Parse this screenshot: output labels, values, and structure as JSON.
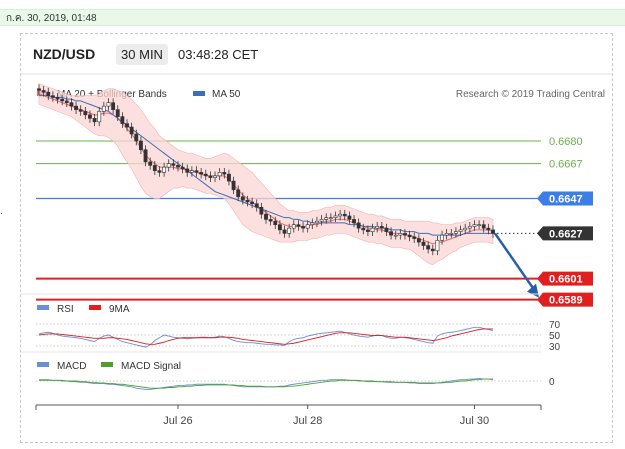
{
  "header": {
    "date_text": "ก.ค. 30, 2019, 01:48",
    "symbol": "NZD/USD",
    "timeframe": "30 MIN",
    "time": "03:48:28 CET"
  },
  "legend": {
    "ma_bb": "MA 20 + Bollinger Bands",
    "ma50": "MA 50",
    "credit": "Research © 2019 Trading Central",
    "rsi": "RSI",
    "rsi_ma": "9MA",
    "macd": "MACD",
    "macd_signal": "MACD Signal"
  },
  "colors": {
    "candle": "#333333",
    "ma20": "#e86a6a",
    "bollinger_fill": "#fbd5d5",
    "ma50": "#3d6fb6",
    "resistance": "#6ab04c",
    "pivot": "#3c7de6",
    "support": "#e02020",
    "current": "#333333",
    "arrow": "#2a5fa8",
    "rsi_line": "#6a8fd6",
    "rsi_ma": "#e02020",
    "macd_line": "#6a8fd6",
    "macd_signal": "#4fa02a"
  },
  "chart_data": {
    "type": "candlestick",
    "title": "NZD/USD 30 MIN",
    "ylim": [
      0.6575,
      0.6715
    ],
    "x_ticks": [
      "Jul 26",
      "Jul 28",
      "Jul 30"
    ],
    "levels": [
      {
        "value": 0.668,
        "label": "0.6680",
        "kind": "resistance"
      },
      {
        "value": 0.6667,
        "label": "0.6667",
        "kind": "resistance"
      },
      {
        "value": 0.6647,
        "label": "0.6647",
        "kind": "pivot"
      },
      {
        "value": 0.6627,
        "label": "0.6627",
        "kind": "current"
      },
      {
        "value": 0.6601,
        "label": "0.6601",
        "kind": "support"
      },
      {
        "value": 0.6589,
        "label": "0.6589",
        "kind": "support"
      }
    ],
    "price_closes": [
      0.6709,
      0.6708,
      0.6706,
      0.6705,
      0.6704,
      0.6703,
      0.6702,
      0.67,
      0.6698,
      0.6697,
      0.6695,
      0.6693,
      0.6691,
      0.6697,
      0.67,
      0.6702,
      0.6698,
      0.6694,
      0.669,
      0.6688,
      0.6684,
      0.668,
      0.6675,
      0.6668,
      0.6666,
      0.6663,
      0.6662,
      0.6665,
      0.6667,
      0.6666,
      0.6665,
      0.6664,
      0.6662,
      0.6663,
      0.6662,
      0.6661,
      0.666,
      0.6659,
      0.666,
      0.6662,
      0.6661,
      0.6657,
      0.6652,
      0.6648,
      0.6646,
      0.6645,
      0.6644,
      0.6642,
      0.6638,
      0.6635,
      0.6634,
      0.6632,
      0.6629,
      0.6627,
      0.663,
      0.6632,
      0.6631,
      0.663,
      0.6632,
      0.6633,
      0.6634,
      0.6635,
      0.6636,
      0.6636,
      0.6637,
      0.6638,
      0.6637,
      0.6635,
      0.6633,
      0.663,
      0.6629,
      0.6628,
      0.663,
      0.6631,
      0.663,
      0.6628,
      0.6626,
      0.6626,
      0.6627,
      0.6626,
      0.6625,
      0.6624,
      0.6622,
      0.662,
      0.6618,
      0.6617,
      0.6623,
      0.6626,
      0.6627,
      0.6627,
      0.6628,
      0.6629,
      0.663,
      0.6631,
      0.6632,
      0.6632,
      0.663,
      0.6629,
      0.6627
    ],
    "ma20_values": [
      0.6707,
      0.6706,
      0.6705,
      0.6704,
      0.6703,
      0.6702,
      0.6701,
      0.67,
      0.6699,
      0.6698,
      0.6697,
      0.6696,
      0.6695,
      0.6695,
      0.6696,
      0.6696,
      0.6695,
      0.6693,
      0.669,
      0.6687,
      0.6684,
      0.668,
      0.6676,
      0.6672,
      0.6669,
      0.6667,
      0.6665,
      0.6665,
      0.6665,
      0.6665,
      0.6664,
      0.6664,
      0.6663,
      0.6663,
      0.6662,
      0.6661,
      0.666,
      0.666,
      0.666,
      0.666,
      0.666,
      0.6658,
      0.6655,
      0.6652,
      0.6649,
      0.6647,
      0.6645,
      0.6643,
      0.6641,
      0.6639,
      0.6637,
      0.6635,
      0.6633,
      0.6632,
      0.6631,
      0.6631,
      0.6631,
      0.6631,
      0.6631,
      0.6632,
      0.6632,
      0.6633,
      0.6634,
      0.6634,
      0.6635,
      0.6635,
      0.6635,
      0.6634,
      0.6633,
      0.6632,
      0.6631,
      0.663,
      0.663,
      0.6629,
      0.6629,
      0.6628,
      0.6627,
      0.6627,
      0.6627,
      0.6626,
      0.6626,
      0.6625,
      0.6624,
      0.6623,
      0.6622,
      0.6621,
      0.6622,
      0.6622,
      0.6623,
      0.6624,
      0.6625,
      0.6626,
      0.6627,
      0.6628,
      0.6629,
      0.6629,
      0.6629,
      0.6629,
      0.6628
    ],
    "ma50_values": [
      0.6706,
      0.6706,
      0.6706,
      0.6705,
      0.6705,
      0.6705,
      0.6704,
      0.6704,
      0.6703,
      0.6703,
      0.6702,
      0.6701,
      0.67,
      0.6699,
      0.6698,
      0.6697,
      0.6695,
      0.6693,
      0.6691,
      0.6689,
      0.6687,
      0.6685,
      0.6683,
      0.6681,
      0.6679,
      0.6677,
      0.6675,
      0.6673,
      0.6671,
      0.6669,
      0.6667,
      0.6665,
      0.6663,
      0.6661,
      0.6659,
      0.6657,
      0.6655,
      0.6653,
      0.6651,
      0.665,
      0.6649,
      0.6648,
      0.6647,
      0.6646,
      0.6645,
      0.6644,
      0.6643,
      0.6642,
      0.6641,
      0.664,
      0.6639,
      0.6638,
      0.6637,
      0.6636,
      0.6636,
      0.6635,
      0.6635,
      0.6634,
      0.6634,
      0.6633,
      0.6633,
      0.6633,
      0.6633,
      0.6633,
      0.6633,
      0.6633,
      0.6633,
      0.6632,
      0.6632,
      0.6632,
      0.6631,
      0.6631,
      0.6631,
      0.663,
      0.663,
      0.663,
      0.6629,
      0.6629,
      0.6629,
      0.6628,
      0.6628,
      0.6628,
      0.6627,
      0.6627,
      0.6627,
      0.6626,
      0.6626,
      0.6626,
      0.6626,
      0.6626,
      0.6626,
      0.6626,
      0.6627,
      0.6627,
      0.6627,
      0.6627,
      0.6627,
      0.6627,
      0.6627
    ],
    "bb_width": [
      0.0006,
      0.0006,
      0.0006,
      0.0006,
      0.0006,
      0.0006,
      0.0006,
      0.0006,
      0.0007,
      0.0008,
      0.0009,
      0.001,
      0.0011,
      0.0012,
      0.0013,
      0.0014,
      0.0015,
      0.0016,
      0.0018,
      0.0019,
      0.002,
      0.0021,
      0.0022,
      0.0022,
      0.0021,
      0.002,
      0.0018,
      0.0016,
      0.0014,
      0.0012,
      0.0011,
      0.001,
      0.001,
      0.001,
      0.001,
      0.001,
      0.001,
      0.001,
      0.0011,
      0.0012,
      0.0013,
      0.0014,
      0.0015,
      0.0016,
      0.0017,
      0.0017,
      0.0017,
      0.0016,
      0.0015,
      0.0014,
      0.0013,
      0.0012,
      0.0011,
      0.001,
      0.0009,
      0.0009,
      0.0008,
      0.0008,
      0.0008,
      0.0008,
      0.0008,
      0.0008,
      0.0008,
      0.0008,
      0.0008,
      0.0008,
      0.0008,
      0.0008,
      0.0008,
      0.0008,
      0.0008,
      0.0008,
      0.0008,
      0.0008,
      0.0008,
      0.0008,
      0.0008,
      0.0008,
      0.0008,
      0.0008,
      0.0008,
      0.0009,
      0.001,
      0.0011,
      0.0012,
      0.0012,
      0.0011,
      0.001,
      0.0009,
      0.0008,
      0.0008,
      0.0007,
      0.0007,
      0.0007,
      0.0007,
      0.0007,
      0.0007,
      0.0007,
      0.0007
    ],
    "projection": {
      "from": 0.6627,
      "to": 0.6589
    },
    "rsi": {
      "levels": [
        70,
        50,
        30
      ],
      "values": [
        52,
        54,
        55,
        53,
        50,
        48,
        47,
        46,
        45,
        44,
        42,
        40,
        38,
        44,
        48,
        50,
        46,
        42,
        38,
        36,
        34,
        32,
        30,
        28,
        32,
        40,
        45,
        50,
        48,
        46,
        45,
        44,
        43,
        44,
        45,
        46,
        46,
        45,
        46,
        48,
        47,
        44,
        40,
        38,
        37,
        36,
        36,
        35,
        34,
        33,
        33,
        32,
        32,
        31,
        38,
        42,
        44,
        45,
        48,
        50,
        52,
        53,
        54,
        55,
        56,
        57,
        55,
        52,
        50,
        48,
        47,
        46,
        48,
        50,
        49,
        46,
        44,
        44,
        46,
        45,
        44,
        42,
        40,
        38,
        36,
        35,
        48,
        52,
        54,
        55,
        56,
        58,
        60,
        62,
        64,
        64,
        62,
        60,
        58
      ],
      "ma9_values": [
        50,
        51,
        52,
        52,
        52,
        51,
        50,
        49,
        48,
        47,
        46,
        45,
        44,
        44,
        44,
        45,
        45,
        44,
        43,
        42,
        40,
        38,
        36,
        34,
        33,
        33,
        35,
        37,
        40,
        42,
        44,
        45,
        45,
        45,
        45,
        45,
        45,
        45,
        45,
        46,
        46,
        46,
        45,
        44,
        42,
        41,
        40,
        39,
        38,
        37,
        36,
        35,
        34,
        33,
        34,
        35,
        37,
        39,
        41,
        43,
        45,
        47,
        49,
        51,
        53,
        54,
        54,
        54,
        53,
        52,
        51,
        50,
        49,
        49,
        49,
        48,
        47,
        46,
        46,
        46,
        45,
        44,
        43,
        42,
        41,
        40,
        41,
        43,
        45,
        48,
        50,
        52,
        54,
        56,
        58,
        60,
        61,
        61,
        61
      ]
    },
    "macd": {
      "levels": [
        0
      ],
      "macd_values": [
        0.0002,
        0.0002,
        0.0002,
        0.0001,
        0.0001,
        0.0,
        0.0,
        -0.0001,
        -0.0001,
        -0.0002,
        -0.0002,
        -0.0003,
        -0.0004,
        -0.0004,
        -0.0004,
        -0.0005,
        -0.0005,
        -0.0006,
        -0.0007,
        -0.0008,
        -0.0009,
        -0.0011,
        -0.0012,
        -0.0013,
        -0.0013,
        -0.0012,
        -0.0011,
        -0.001,
        -0.0009,
        -0.0008,
        -0.0007,
        -0.0007,
        -0.0006,
        -0.0006,
        -0.0005,
        -0.0005,
        -0.0005,
        -0.0005,
        -0.0005,
        -0.0005,
        -0.0005,
        -0.0006,
        -0.0007,
        -0.0008,
        -0.0009,
        -0.0009,
        -0.0009,
        -0.0009,
        -0.0009,
        -0.0009,
        -0.0009,
        -0.0009,
        -0.0008,
        -0.0008,
        -0.0006,
        -0.0005,
        -0.0004,
        -0.0003,
        -0.0002,
        -0.0001,
        0.0,
        0.0001,
        0.0001,
        0.0002,
        0.0002,
        0.0002,
        0.0002,
        0.0001,
        0.0001,
        0.0,
        0.0,
        -0.0001,
        -0.0001,
        -0.0001,
        -0.0001,
        -0.0002,
        -0.0002,
        -0.0002,
        -0.0002,
        -0.0002,
        -0.0003,
        -0.0003,
        -0.0004,
        -0.0004,
        -0.0004,
        -0.0004,
        -0.0003,
        -0.0002,
        -0.0001,
        0.0,
        0.0001,
        0.0002,
        0.0002,
        0.0003,
        0.0003,
        0.0004,
        0.0003,
        0.0003,
        0.0002
      ],
      "signal_values": [
        0.0001,
        0.0001,
        0.0001,
        0.0001,
        0.0001,
        0.0001,
        0.0,
        0.0,
        0.0,
        -0.0001,
        -0.0001,
        -0.0002,
        -0.0002,
        -0.0003,
        -0.0003,
        -0.0004,
        -0.0004,
        -0.0005,
        -0.0005,
        -0.0006,
        -0.0007,
        -0.0008,
        -0.0009,
        -0.001,
        -0.0011,
        -0.0011,
        -0.0011,
        -0.0011,
        -0.001,
        -0.001,
        -0.0009,
        -0.0009,
        -0.0008,
        -0.0008,
        -0.0007,
        -0.0007,
        -0.0006,
        -0.0006,
        -0.0006,
        -0.0006,
        -0.0006,
        -0.0006,
        -0.0006,
        -0.0007,
        -0.0007,
        -0.0008,
        -0.0008,
        -0.0008,
        -0.0008,
        -0.0009,
        -0.0009,
        -0.0009,
        -0.0009,
        -0.0009,
        -0.0008,
        -0.0008,
        -0.0007,
        -0.0006,
        -0.0005,
        -0.0004,
        -0.0003,
        -0.0002,
        -0.0001,
        0.0,
        0.0,
        0.0001,
        0.0001,
        0.0001,
        0.0001,
        0.0001,
        0.0,
        0.0,
        0.0,
        -0.0001,
        -0.0001,
        -0.0001,
        -0.0001,
        -0.0002,
        -0.0002,
        -0.0002,
        -0.0002,
        -0.0002,
        -0.0003,
        -0.0003,
        -0.0003,
        -0.0003,
        -0.0003,
        -0.0003,
        -0.0002,
        -0.0002,
        -0.0001,
        0.0,
        0.0,
        0.0001,
        0.0002,
        0.0002,
        0.0003,
        0.0003,
        0.0003
      ]
    }
  }
}
